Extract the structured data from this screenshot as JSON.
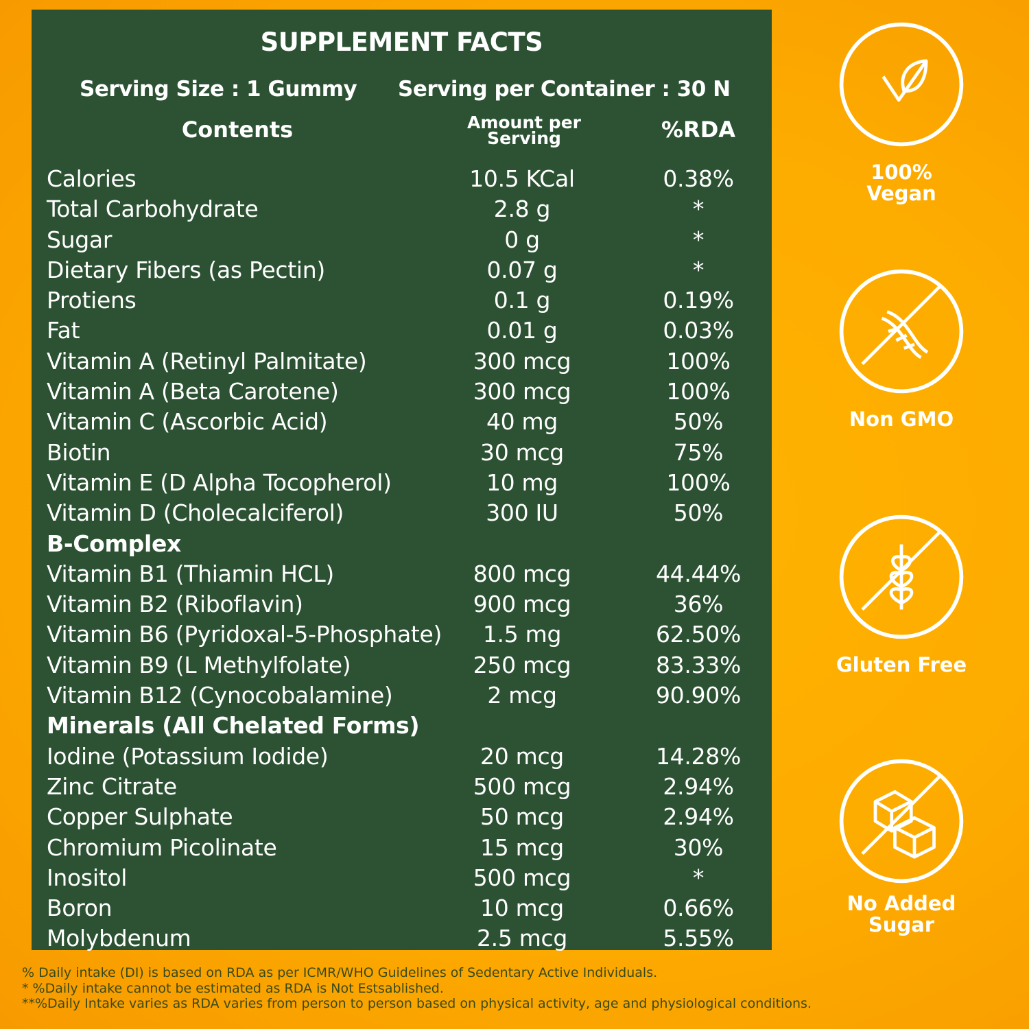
{
  "title": "SUPPLEMENT FACTS",
  "serving_size": "Serving Size : 1 Gummy",
  "servings_per_container": "Serving per Container : 30 N",
  "headers": {
    "contents": "Contents",
    "amount": "Amount per Serving",
    "rda": "%RDA"
  },
  "rows": [
    {
      "name": "Calories",
      "amount": "10.5 KCal",
      "rda": "0.38%"
    },
    {
      "name": "Total Carbohydrate",
      "amount": "2.8 g",
      "rda": "*"
    },
    {
      "name": "Sugar",
      "amount": "0 g",
      "rda": "*"
    },
    {
      "name": "Dietary Fibers (as Pectin)",
      "amount": "0.07 g",
      "rda": "*"
    },
    {
      "name": "Protiens",
      "amount": "0.1 g",
      "rda": "0.19%"
    },
    {
      "name": "Fat",
      "amount": "0.01 g",
      "rda": "0.03%"
    },
    {
      "name": "Vitamin A (Retinyl Palmitate)",
      "amount": "300 mcg",
      "rda": "100%"
    },
    {
      "name": "Vitamin A (Beta Carotene)",
      "amount": "300 mcg",
      "rda": "100%"
    },
    {
      "name": "Vitamin C (Ascorbic Acid)",
      "amount": "40 mg",
      "rda": "50%"
    },
    {
      "name": "Biotin",
      "amount": "30 mcg",
      "rda": "75%"
    },
    {
      "name": "Vitamin E (D Alpha Tocopherol)",
      "amount": "10 mg",
      "rda": "100%"
    },
    {
      "name": "Vitamin D (Cholecalciferol)",
      "amount": "300 IU",
      "rda": "50%"
    },
    {
      "name": "B-Complex",
      "section": true
    },
    {
      "name": "Vitamin B1 (Thiamin HCL)",
      "amount": "800 mcg",
      "rda": "44.44%"
    },
    {
      "name": "Vitamin B2 (Riboflavin)",
      "amount": "900 mcg",
      "rda": "36%"
    },
    {
      "name": "Vitamin B6 (Pyridoxal-5-Phosphate)",
      "amount": "1.5 mg",
      "rda": "62.50%"
    },
    {
      "name": "Vitamin B9 (L Methylfolate)",
      "amount": "250 mcg",
      "rda": "83.33%"
    },
    {
      "name": "Vitamin B12 (Cynocobalamine)",
      "amount": "2 mcg",
      "rda": "90.90%"
    },
    {
      "name": "Minerals (All Chelated Forms)",
      "section": true
    },
    {
      "name": "Iodine (Potassium Iodide)",
      "amount": "20 mcg",
      "rda": "14.28%"
    },
    {
      "name": "Zinc Citrate",
      "amount": "500 mcg",
      "rda": "2.94%"
    },
    {
      "name": "Copper Sulphate",
      "amount": "50 mcg",
      "rda": "2.94%"
    },
    {
      "name": "Chromium Picolinate",
      "amount": "15 mcg",
      "rda": "30%"
    },
    {
      "name": "Inositol",
      "amount": "500 mcg",
      "rda": "*"
    },
    {
      "name": "Boron",
      "amount": "10 mcg",
      "rda": "0.66%"
    },
    {
      "name": "Molybdenum",
      "amount": "2.5 mcg",
      "rda": "5.55%"
    }
  ],
  "badges": [
    {
      "label": "100% Vegan",
      "icon": "vegan-leaf-icon"
    },
    {
      "label": "Non GMO",
      "icon": "dna-crossed-icon"
    },
    {
      "label": "Gluten Free",
      "icon": "wheat-crossed-icon"
    },
    {
      "label": "No Added Sugar",
      "icon": "sugar-cube-crossed-icon"
    }
  ],
  "footnotes": [
    "% Daily intake (DI) is based on RDA as per ICMR/WHO Guidelines of Sedentary Active Individuals.",
    "* %Daily intake cannot be estimated as RDA is Not Estsablished.",
    "**%Daily Intake varies as RDA varies from person to person based on physical activity, age and physiological conditions."
  ],
  "colors": {
    "panel": "#2c5233",
    "background": "#fdab00",
    "text": "#ffffff"
  }
}
